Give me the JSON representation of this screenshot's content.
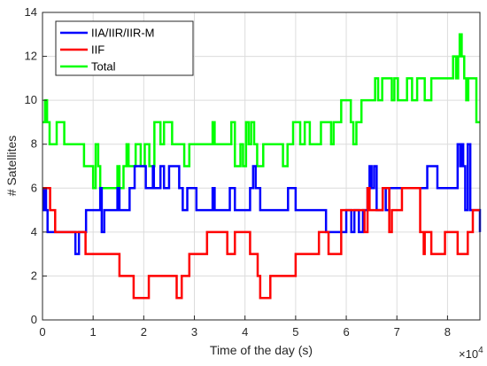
{
  "chart_data": {
    "type": "line",
    "step": true,
    "xlabel": "Time of the day (s)",
    "ylabel": "# Satellites",
    "x_multiplier_label": "×10",
    "x_multiplier_exponent": "4",
    "xlim": [
      0,
      86400
    ],
    "ylim": [
      0,
      14
    ],
    "x_ticks": [
      0,
      10000,
      20000,
      30000,
      40000,
      50000,
      60000,
      70000,
      80000
    ],
    "x_tick_labels": [
      "0",
      "1",
      "2",
      "3",
      "4",
      "5",
      "6",
      "7",
      "8"
    ],
    "y_ticks": [
      0,
      2,
      4,
      6,
      8,
      10,
      12,
      14
    ],
    "y_tick_labels": [
      "0",
      "2",
      "4",
      "6",
      "8",
      "10",
      "12",
      "14"
    ],
    "grid": true,
    "legend_position": "top-left",
    "series": [
      {
        "name": "IIA/IIR/IIR-M",
        "color": "#0000ff",
        "x": [
          0,
          300,
          700,
          1000,
          6500,
          7200,
          8600,
          11400,
          11700,
          12200,
          14800,
          15200,
          17200,
          18200,
          20400,
          21800,
          22000,
          23300,
          24000,
          25000,
          27000,
          27700,
          28600,
          30400,
          31000,
          33600,
          34000,
          37000,
          38000,
          41000,
          41600,
          42100,
          43000,
          47000,
          48500,
          50000,
          55000,
          56000,
          60000,
          61000,
          61600,
          62500,
          63300,
          64200,
          64600,
          65000,
          65500,
          66000,
          67200,
          67800,
          68500,
          76000,
          78000,
          82000,
          82500,
          82800,
          83100,
          83500,
          84000,
          84500,
          86400
        ],
        "y": [
          5,
          6,
          5,
          4,
          3,
          4,
          5,
          6,
          4,
          5,
          6,
          5,
          6,
          7,
          6,
          7,
          6,
          7,
          6,
          7,
          6,
          5,
          6,
          5,
          5,
          6,
          5,
          6,
          5,
          6,
          7,
          6,
          5,
          5,
          6,
          5,
          5,
          4,
          5,
          4,
          5,
          4,
          5,
          6,
          7,
          6,
          7,
          5,
          6,
          5,
          6,
          7,
          6,
          8,
          7,
          8,
          7,
          5,
          8,
          5,
          4
        ]
      },
      {
        "name": "IIF",
        "color": "#ff0000",
        "x": [
          0,
          1500,
          2500,
          6500,
          8500,
          11200,
          15200,
          17500,
          18000,
          20000,
          21000,
          25000,
          26500,
          27500,
          29000,
          30000,
          32500,
          36500,
          38000,
          41000,
          42500,
          43000,
          45000,
          47000,
          50000,
          51000,
          54600,
          56500,
          59000,
          63600,
          64200,
          64600,
          66000,
          67200,
          68500,
          69000,
          71000,
          72000,
          74600,
          75300,
          75500,
          76800,
          79500,
          82000,
          84000,
          85000,
          86400
        ],
        "y": [
          6,
          5,
          4,
          4,
          3,
          3,
          2,
          2,
          1,
          1,
          2,
          2,
          1,
          2,
          3,
          3,
          4,
          3,
          4,
          3,
          2,
          1,
          2,
          2,
          3,
          3,
          4,
          3,
          5,
          4,
          6,
          5,
          5,
          6,
          4,
          5,
          6,
          6,
          4,
          3,
          4,
          3,
          4,
          3,
          4,
          5,
          5
        ]
      },
      {
        "name": "Total",
        "color": "#00ff00",
        "x": [
          0,
          500,
          900,
          1400,
          2800,
          4300,
          6400,
          8200,
          10000,
          10500,
          11000,
          11400,
          14800,
          15200,
          16000,
          16600,
          17000,
          18400,
          19400,
          20200,
          21100,
          22100,
          23300,
          24000,
          25600,
          28000,
          29000,
          30100,
          31200,
          33600,
          34000,
          37300,
          38000,
          39100,
          39600,
          40200,
          40700,
          41200,
          41800,
          42400,
          43600,
          46400,
          47500,
          48400,
          49500,
          50900,
          51800,
          52800,
          55000,
          57000,
          57500,
          59000,
          60900,
          61400,
          62000,
          63000,
          64500,
          65700,
          66300,
          67100,
          69000,
          69500,
          70200,
          72000,
          73000,
          74000,
          74600,
          75500,
          76800,
          78400,
          79500,
          81100,
          81700,
          82100,
          82400,
          82800,
          83300,
          83700,
          84100,
          84700,
          85200,
          85700,
          86400
        ],
        "y": [
          9,
          10,
          9,
          8,
          9,
          8,
          8,
          7,
          6,
          8,
          7,
          6,
          7,
          6,
          7,
          8,
          7,
          8,
          7,
          8,
          7,
          9,
          8,
          9,
          8,
          7,
          8,
          8,
          8,
          9,
          8,
          9,
          7,
          8,
          7,
          9,
          8,
          9,
          8,
          7,
          8,
          8,
          7,
          8,
          9,
          8,
          9,
          8,
          9,
          8,
          9,
          10,
          9,
          8,
          9,
          10,
          10,
          11,
          10,
          11,
          10,
          11,
          10,
          11,
          10,
          11,
          11,
          10,
          11,
          11,
          11,
          12,
          11,
          12,
          13,
          12,
          11,
          10,
          11,
          11,
          11,
          9,
          9
        ]
      }
    ]
  }
}
